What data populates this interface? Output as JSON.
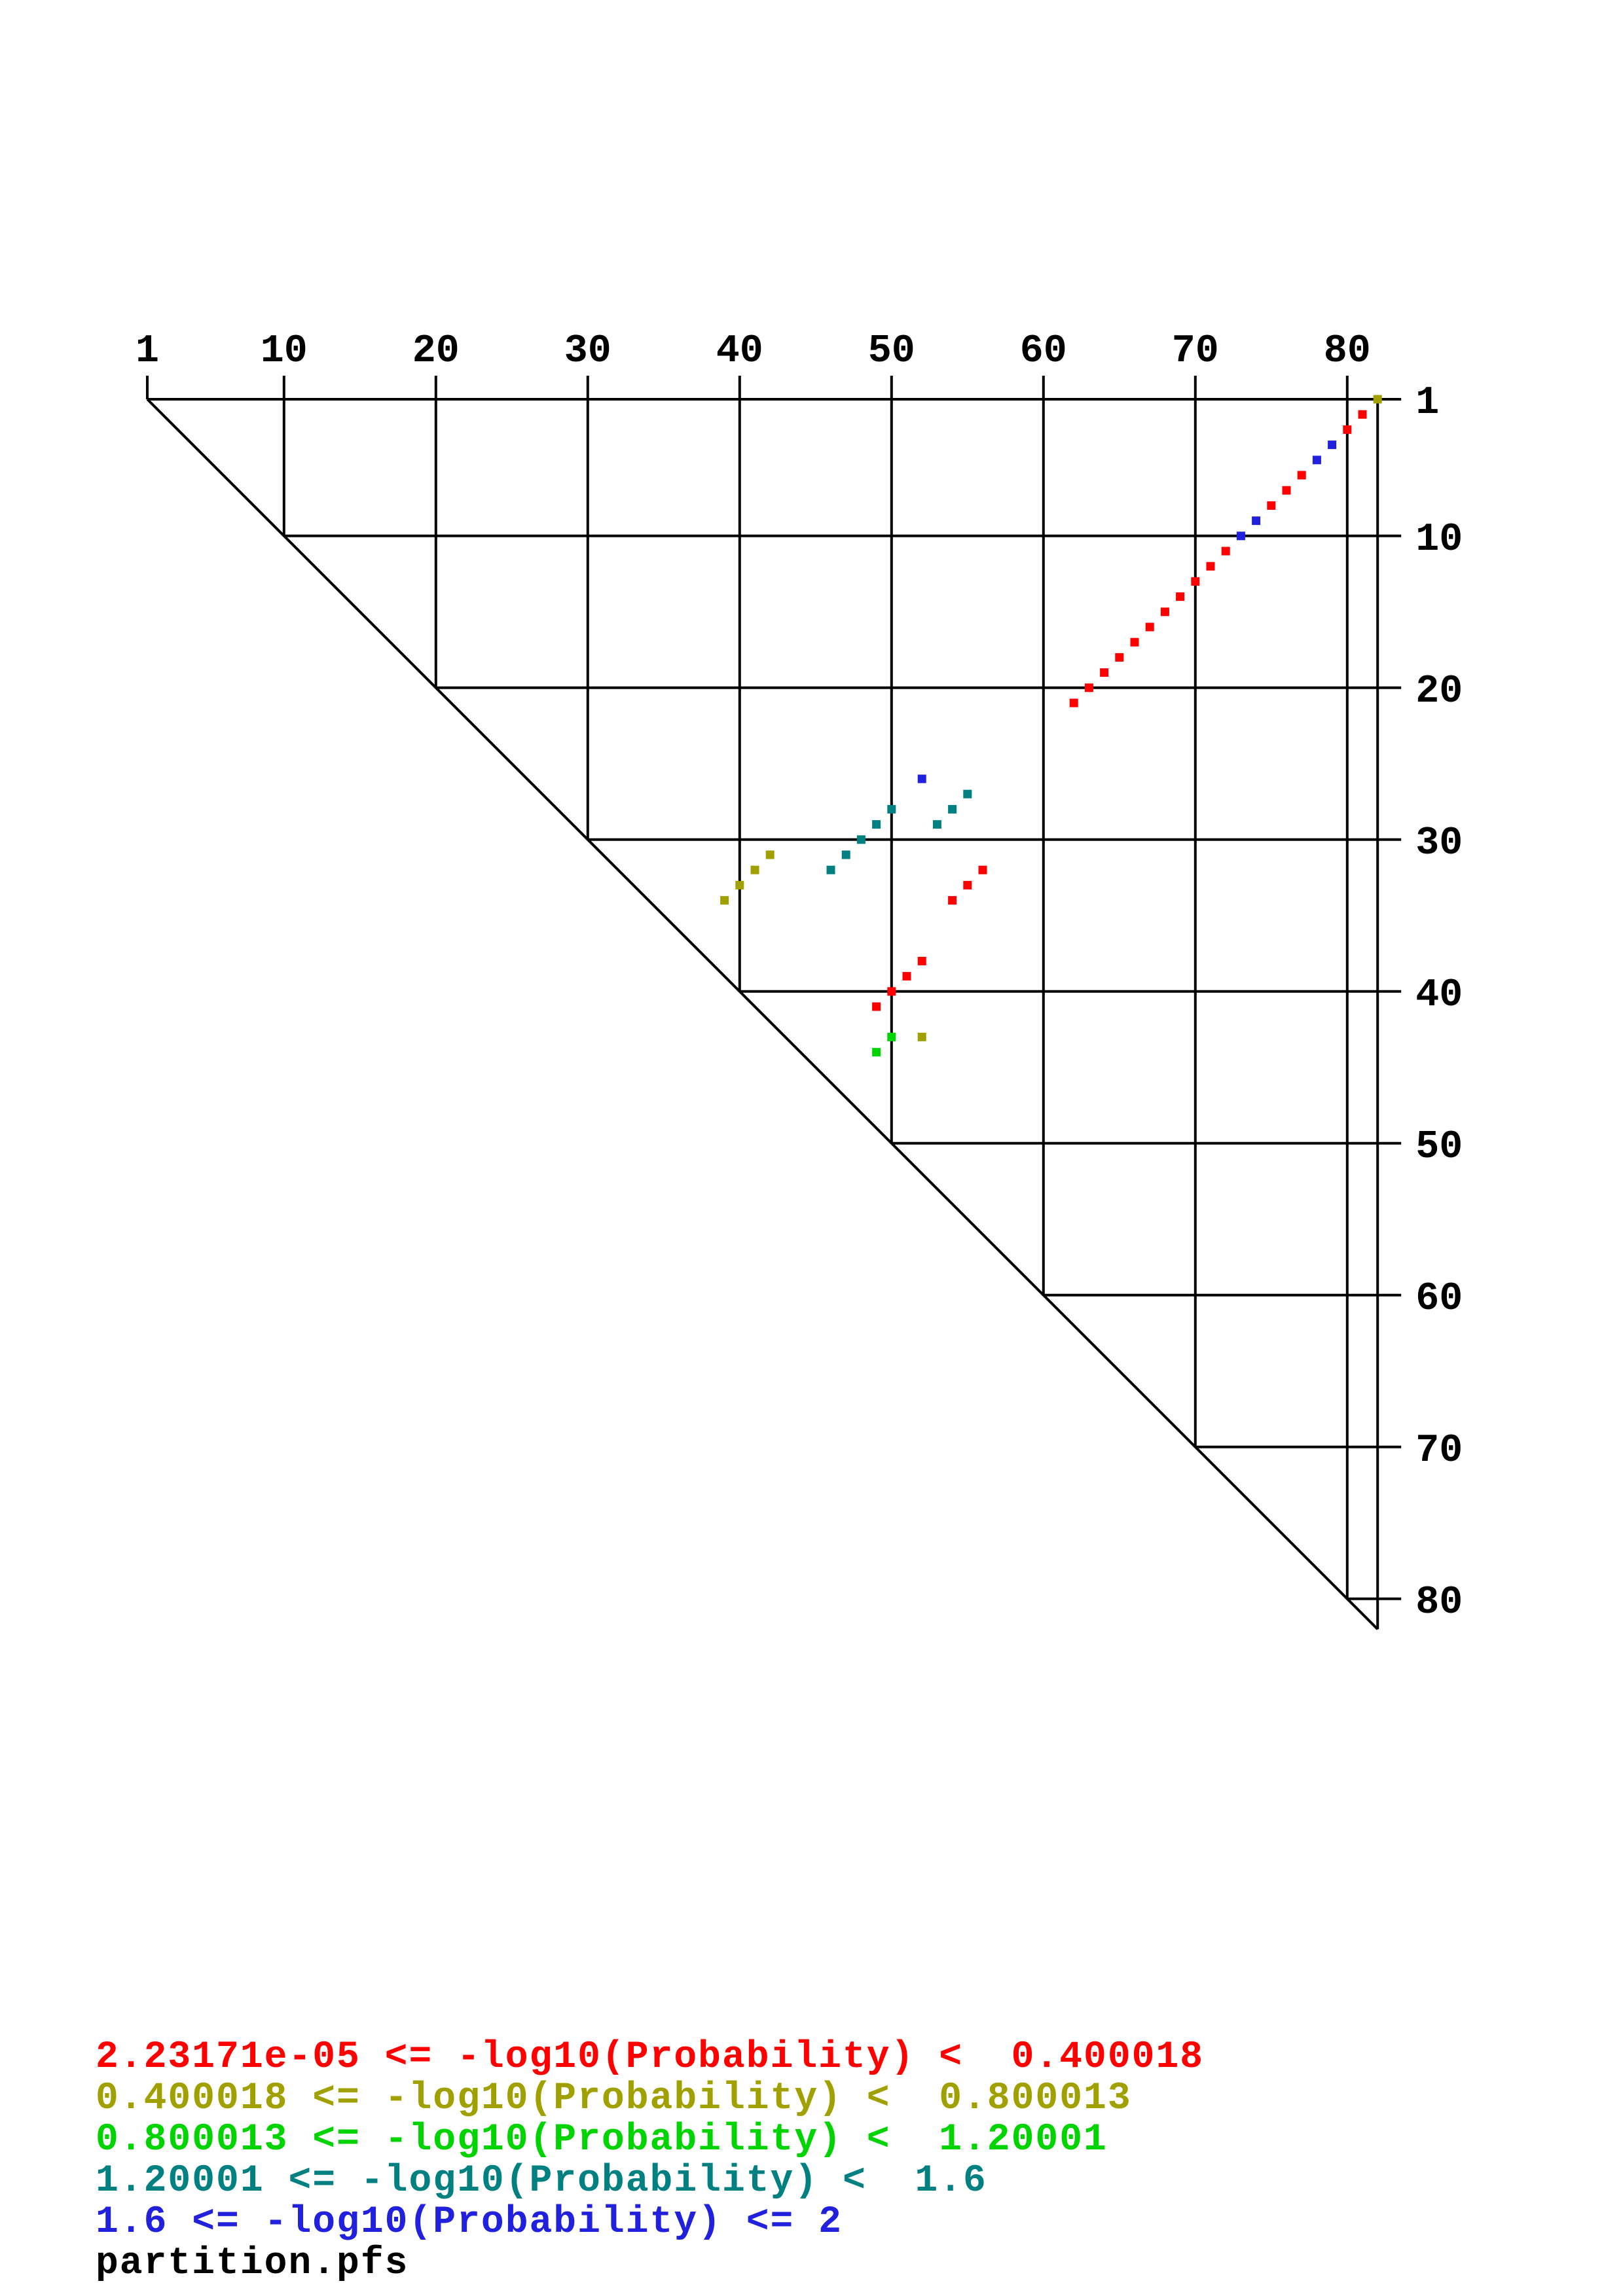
{
  "chart_data": {
    "type": "scatter",
    "subtype": "triangular-probability-dot-plot",
    "title": "",
    "sequence_length": 82,
    "x_axis": {
      "ticks": [
        1,
        10,
        20,
        30,
        40,
        50,
        60,
        70,
        80
      ]
    },
    "y_axis": {
      "ticks": [
        1,
        10,
        20,
        30,
        40,
        50,
        60,
        70,
        80
      ]
    },
    "grid": true,
    "colors": {
      "red": "#ff0000",
      "olive": "#a0a000",
      "green": "#00d400",
      "teal": "#008080",
      "blue": "#2020dd",
      "black": "#000000"
    },
    "bins": [
      {
        "color": "red",
        "min": "2.23171e-05",
        "max": "0.400018"
      },
      {
        "color": "olive",
        "min": "0.400018",
        "max": "0.800013"
      },
      {
        "color": "green",
        "min": "0.800013",
        "max": "1.20001"
      },
      {
        "color": "teal",
        "min": "1.20001",
        "max": "1.6"
      },
      {
        "color": "blue",
        "min": "1.6",
        "max": "2"
      }
    ],
    "dots": [
      {
        "i": 1,
        "j": 82,
        "c": "olive"
      },
      {
        "i": 2,
        "j": 81,
        "c": "red"
      },
      {
        "i": 3,
        "j": 80,
        "c": "red"
      },
      {
        "i": 4,
        "j": 79,
        "c": "blue"
      },
      {
        "i": 5,
        "j": 78,
        "c": "blue"
      },
      {
        "i": 6,
        "j": 77,
        "c": "red"
      },
      {
        "i": 7,
        "j": 76,
        "c": "red"
      },
      {
        "i": 8,
        "j": 75,
        "c": "red"
      },
      {
        "i": 9,
        "j": 74,
        "c": "blue"
      },
      {
        "i": 10,
        "j": 73,
        "c": "blue"
      },
      {
        "i": 11,
        "j": 72,
        "c": "red"
      },
      {
        "i": 12,
        "j": 71,
        "c": "red"
      },
      {
        "i": 13,
        "j": 70,
        "c": "red"
      },
      {
        "i": 14,
        "j": 69,
        "c": "red"
      },
      {
        "i": 15,
        "j": 68,
        "c": "red"
      },
      {
        "i": 16,
        "j": 67,
        "c": "red"
      },
      {
        "i": 17,
        "j": 66,
        "c": "red"
      },
      {
        "i": 18,
        "j": 65,
        "c": "red"
      },
      {
        "i": 19,
        "j": 64,
        "c": "red"
      },
      {
        "i": 20,
        "j": 63,
        "c": "red"
      },
      {
        "i": 21,
        "j": 62,
        "c": "red"
      },
      {
        "i": 26,
        "j": 52,
        "c": "blue"
      },
      {
        "i": 27,
        "j": 55,
        "c": "teal"
      },
      {
        "i": 28,
        "j": 54,
        "c": "teal"
      },
      {
        "i": 29,
        "j": 53,
        "c": "teal"
      },
      {
        "i": 28,
        "j": 50,
        "c": "teal"
      },
      {
        "i": 29,
        "j": 49,
        "c": "teal"
      },
      {
        "i": 30,
        "j": 48,
        "c": "teal"
      },
      {
        "i": 31,
        "j": 47,
        "c": "teal"
      },
      {
        "i": 32,
        "j": 46,
        "c": "teal"
      },
      {
        "i": 31,
        "j": 42,
        "c": "olive"
      },
      {
        "i": 32,
        "j": 41,
        "c": "olive"
      },
      {
        "i": 33,
        "j": 40,
        "c": "olive"
      },
      {
        "i": 34,
        "j": 39,
        "c": "olive"
      },
      {
        "i": 32,
        "j": 56,
        "c": "red"
      },
      {
        "i": 33,
        "j": 55,
        "c": "red"
      },
      {
        "i": 34,
        "j": 54,
        "c": "red"
      },
      {
        "i": 38,
        "j": 52,
        "c": "red"
      },
      {
        "i": 39,
        "j": 51,
        "c": "red"
      },
      {
        "i": 40,
        "j": 50,
        "c": "red"
      },
      {
        "i": 41,
        "j": 49,
        "c": "red"
      },
      {
        "i": 43,
        "j": 52,
        "c": "olive"
      },
      {
        "i": 43,
        "j": 50,
        "c": "green"
      },
      {
        "i": 44,
        "j": 49,
        "c": "green"
      }
    ]
  },
  "legend": {
    "lines": [
      {
        "text": "2.23171e-05 <= -log10(Probability) <  0.400018",
        "color": "red"
      },
      {
        "text": "0.400018 <= -log10(Probability) <  0.800013",
        "color": "olive"
      },
      {
        "text": "0.800013 <= -log10(Probability) <  1.20001",
        "color": "green"
      },
      {
        "text": "1.20001 <= -log10(Probability) <  1.6",
        "color": "teal"
      },
      {
        "text": "1.6 <= -log10(Probability) <= 2",
        "color": "blue"
      },
      {
        "text": "partition.pfs",
        "color": "black"
      }
    ]
  }
}
